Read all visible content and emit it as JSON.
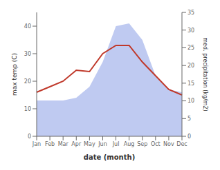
{
  "chart_data": {
    "type": "line",
    "xlabel": "date (month)",
    "ylabel": "max temp (C)",
    "y2label": "med. precipitation (kg/m2)",
    "categories": [
      "Jan",
      "Feb",
      "Mar",
      "Apr",
      "May",
      "Jun",
      "Jul",
      "Aug",
      "Sep",
      "Oct",
      "Nov",
      "Dec"
    ],
    "series": [
      {
        "type": "area",
        "color": "#b8c4ef",
        "values": [
          13,
          13,
          13,
          14,
          18,
          27,
          40,
          41,
          35,
          22,
          17,
          16
        ]
      },
      {
        "type": "line",
        "color": "#c0392b",
        "values": [
          16,
          18,
          20,
          24,
          23.5,
          30,
          33,
          33,
          27,
          22,
          17,
          15
        ]
      }
    ],
    "ylim": [
      0,
      45
    ],
    "yticks": [
      0,
      10,
      20,
      30,
      40
    ],
    "y2lim": [
      0,
      35
    ],
    "y2ticks": [
      0,
      5,
      10,
      15,
      20,
      25,
      30,
      35
    ],
    "grid": false
  }
}
